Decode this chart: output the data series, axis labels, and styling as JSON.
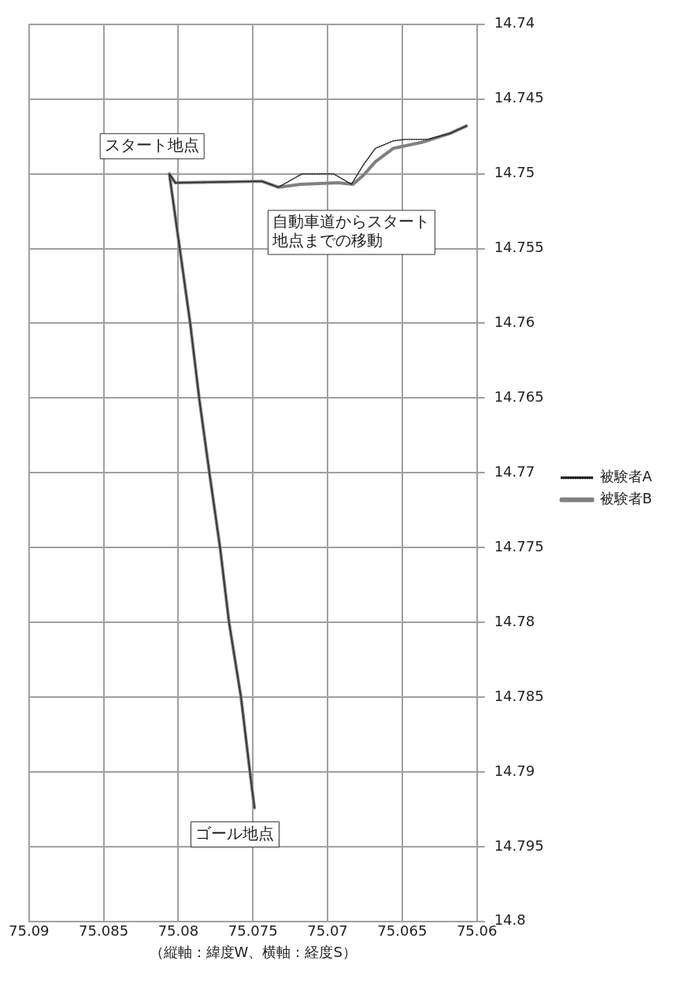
{
  "chart_data": {
    "type": "line",
    "xlabel": "（縦軸：緯度W、横軸：経度S）",
    "xlim": [
      75.09,
      75.06
    ],
    "xticks": [
      75.09,
      75.085,
      75.08,
      75.075,
      75.07,
      75.065,
      75.06
    ],
    "ylim": [
      14.8,
      14.74
    ],
    "yticks": [
      14.74,
      14.745,
      14.75,
      14.755,
      14.76,
      14.765,
      14.77,
      14.775,
      14.78,
      14.785,
      14.79,
      14.795,
      14.8
    ],
    "grid": true,
    "legend": "right",
    "marker": "none",
    "series": [
      {
        "name": "被験者A",
        "color": "#222222",
        "line_style": "dotted",
        "x": [
          75.0607,
          75.0618,
          75.0633,
          75.0648,
          75.0656,
          75.0668,
          75.0676,
          75.0684,
          75.0696,
          75.0717,
          75.0733,
          75.0744,
          75.0802,
          75.0806,
          75.0799,
          75.0792,
          75.0786,
          75.0779,
          75.0772,
          75.0766,
          75.0758,
          75.0752,
          75.0749
        ],
        "values": [
          14.7468,
          14.7473,
          14.7477,
          14.7477,
          14.7478,
          14.7483,
          14.7494,
          14.7507,
          14.75,
          14.75,
          14.7509,
          14.7505,
          14.7506,
          14.75,
          14.755,
          14.76,
          14.765,
          14.7701,
          14.775,
          14.78,
          14.785,
          14.79,
          14.7924
        ]
      },
      {
        "name": "被験者B",
        "color": "#808080",
        "line_style": "solid",
        "x": [
          75.0607,
          75.0618,
          75.0637,
          75.0656,
          75.0668,
          75.0676,
          75.0683,
          75.0693,
          75.0718,
          75.0733,
          75.0744,
          75.0802,
          75.0806,
          75.0799,
          75.0792,
          75.0786,
          75.0779,
          75.0772,
          75.0766,
          75.0758,
          75.0752,
          75.0749
        ],
        "values": [
          14.7468,
          14.7473,
          14.7479,
          14.7483,
          14.7492,
          14.7501,
          14.7507,
          14.7506,
          14.7507,
          14.7509,
          14.7505,
          14.7506,
          14.75,
          14.755,
          14.76,
          14.765,
          14.7701,
          14.775,
          14.78,
          14.785,
          14.79,
          14.7924
        ]
      }
    ],
    "annotations": [
      "スタート地点",
      "自動車道からスタート地点までの移動",
      "ゴール地点"
    ]
  }
}
